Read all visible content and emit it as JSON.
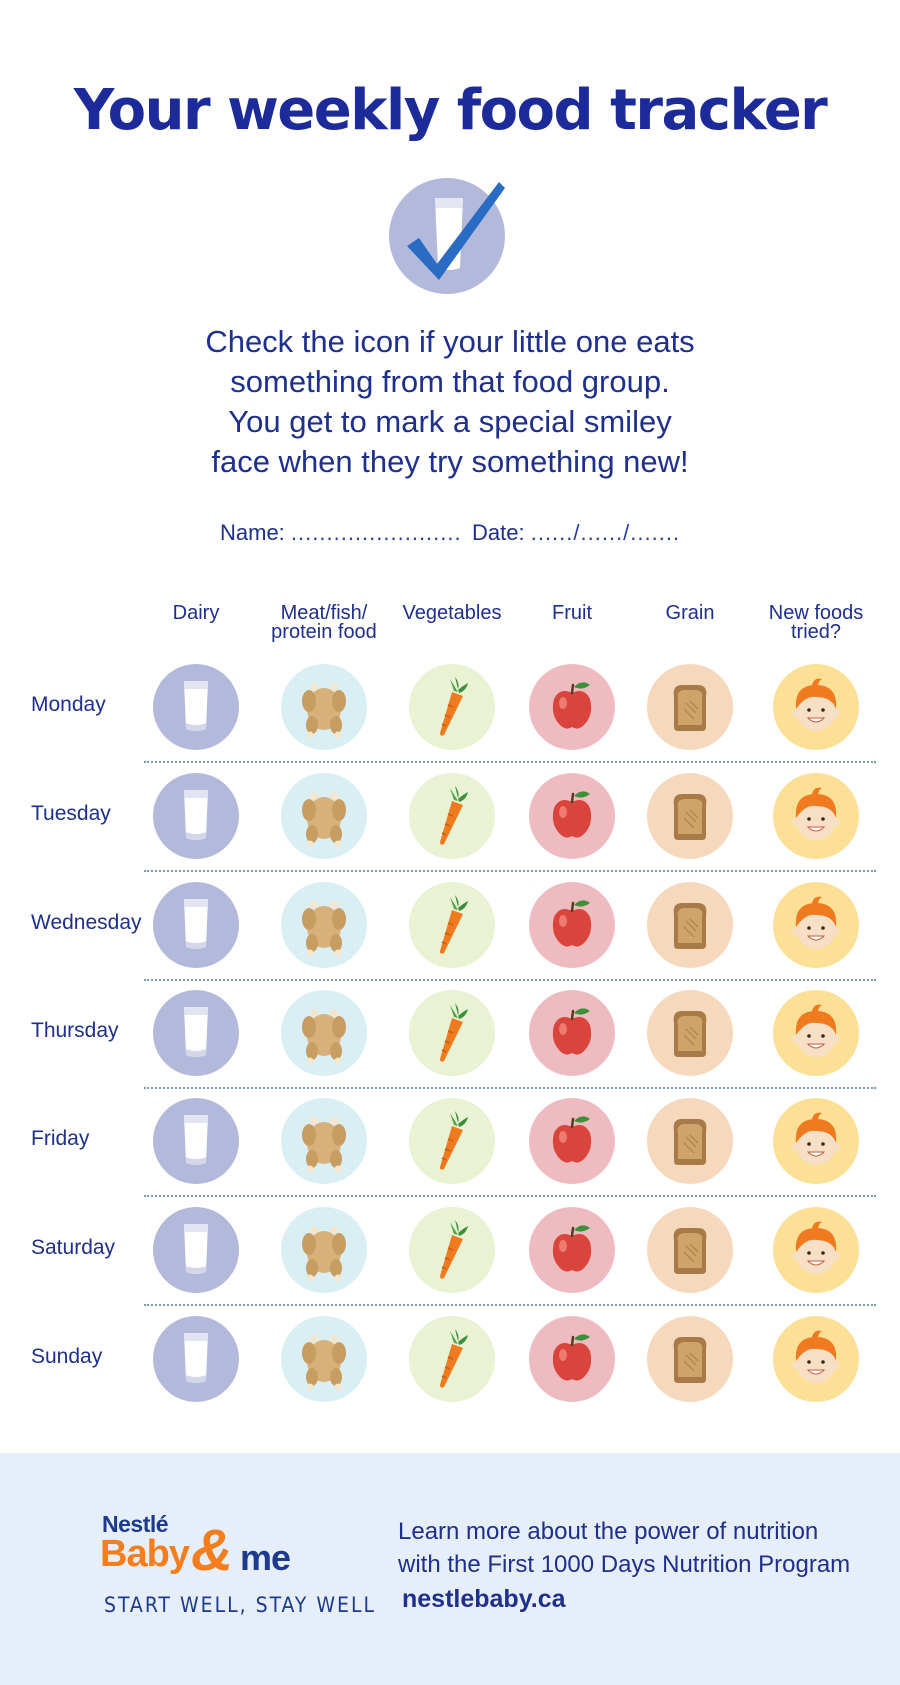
{
  "title": "Your weekly food tracker",
  "intro_lines": [
    "Check the icon if your little one eats",
    "something from that food group.",
    "You get to mark a special smiley",
    "face when they try something new!"
  ],
  "fields": {
    "name_label": "Name:",
    "name_dots": "........................",
    "date_label": "Date:",
    "date_dots": "....../....../......."
  },
  "columns": [
    {
      "line1": "Dairy",
      "line2": "",
      "icon": "milk-glass-icon",
      "bg": "#b3b9db"
    },
    {
      "line1": "Meat/fish/",
      "line2": "protein food",
      "icon": "roast-chicken-icon",
      "bg": "#d9eff4"
    },
    {
      "line1": "Vegetables",
      "line2": "",
      "icon": "carrot-icon",
      "bg": "#e9f2d2"
    },
    {
      "line1": "Fruit",
      "line2": "",
      "icon": "apple-icon",
      "bg": "#eebcc0"
    },
    {
      "line1": "Grain",
      "line2": "",
      "icon": "toast-bread-icon",
      "bg": "#f6d9bd"
    },
    {
      "line1": "New foods",
      "line2": "tried?",
      "icon": "smiley-face-icon",
      "bg": "#fbe096"
    }
  ],
  "days": [
    "Monday",
    "Tuesday",
    "Wednesday",
    "Thursday",
    "Friday",
    "Saturday",
    "Sunday"
  ],
  "footer": {
    "brand_top": "Nestlé",
    "brand_baby": "Baby",
    "brand_amp": "&",
    "brand_me": "me",
    "tagline": "START WELL, STAY WELL",
    "line1": "Learn more about the power of nutrition",
    "line2": "with the First 1000 Days Nutrition Program",
    "url": "nestlebaby.ca"
  },
  "colors": {
    "title": "#1c2a9a",
    "text": "#1f2f8c",
    "footer_bg": "#e6eef9",
    "brand_orange": "#f47d1d",
    "check_blue": "#2a6cc4"
  }
}
